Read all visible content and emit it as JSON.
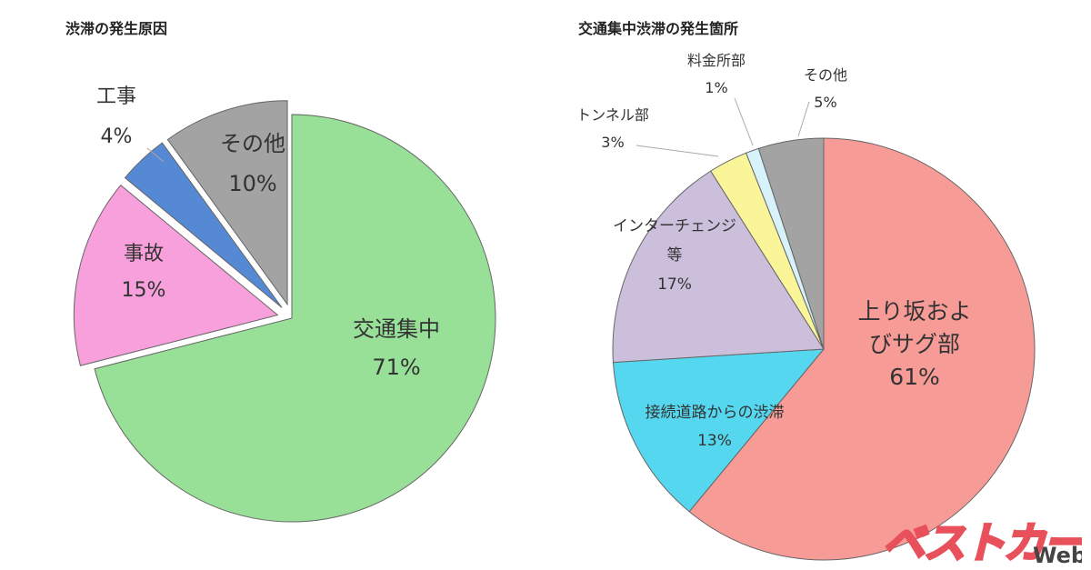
{
  "chart_data": [
    {
      "type": "pie",
      "title": "渋滞の発生原因",
      "slices": [
        {
          "label": "交通集中",
          "value": 71,
          "display": "71%",
          "color": "#98e098",
          "exploded": false
        },
        {
          "label": "事故",
          "value": 15,
          "display": "15%",
          "color": "#f7a0dc",
          "exploded": true
        },
        {
          "label": "工事",
          "value": 4,
          "display": "4%",
          "color": "#5689d4",
          "exploded": true
        },
        {
          "label": "その他",
          "value": 10,
          "display": "10%",
          "color": "#a3a3a3",
          "exploded": true
        }
      ]
    },
    {
      "type": "pie",
      "title": "交通集中渋滞の発生箇所",
      "slices": [
        {
          "label": "上り坂およびサグ部",
          "value": 61,
          "display": "61%",
          "color": "#f79b97"
        },
        {
          "label": "接続道路からの渋滞",
          "value": 13,
          "display": "13%",
          "color": "#55d8ef"
        },
        {
          "label": "インターチェンジ等",
          "value": 17,
          "display": "17%",
          "color": "#cbbfdc"
        },
        {
          "label": "トンネル部",
          "value": 3,
          "display": "3%",
          "color": "#fbf59a"
        },
        {
          "label": "料金所部",
          "value": 1,
          "display": "1%",
          "color": "#d7f2fa"
        },
        {
          "label": "その他",
          "value": 5,
          "display": "5%",
          "color": "#a3a3a3"
        }
      ]
    }
  ],
  "logo": {
    "brand": "ベストカー",
    "suffix": "Web",
    "color": "#e8505b"
  }
}
